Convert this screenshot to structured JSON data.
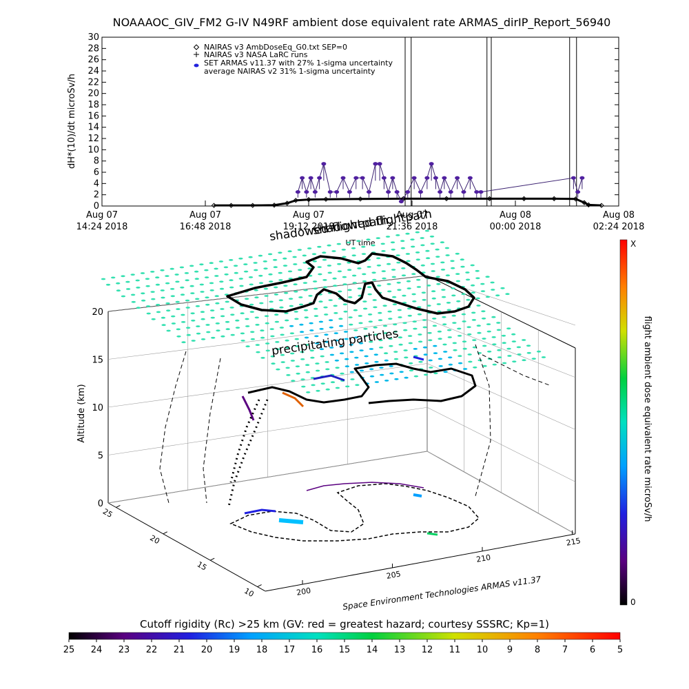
{
  "chart_data": [
    {
      "type": "scatter",
      "title": "NOAAAOC_GIV_FM2 G-IV    N49RF   ambient dose equivalent rate ARMAS_dirIP_Report_56940",
      "xlabel": "UT time",
      "ylabel": "dH*(10)/dt microSv/h",
      "ylim": [
        0,
        30
      ],
      "yticks": [
        0,
        2,
        4,
        6,
        8,
        10,
        12,
        14,
        16,
        18,
        20,
        22,
        24,
        26,
        28,
        30
      ],
      "xlim_hours": [
        0,
        12
      ],
      "xticks": [
        {
          "h": 0,
          "l1": "Aug 07",
          "l2": "14:24 2018"
        },
        {
          "h": 2.4,
          "l1": "Aug 07",
          "l2": "16:48 2018"
        },
        {
          "h": 4.8,
          "l1": "Aug 07",
          "l2": "19:12 2018"
        },
        {
          "h": 7.2,
          "l1": "Aug 07",
          "l2": "21:36 2018"
        },
        {
          "h": 9.6,
          "l1": "Aug 08",
          "l2": "00:00 2018"
        },
        {
          "h": 12,
          "l1": "Aug 08",
          "l2": "02:24 2018"
        }
      ],
      "legend": [
        {
          "marker": "diamond",
          "text": "NAIRAS v3 AmbDoseEq_G0.txt SEP=0"
        },
        {
          "marker": "plus",
          "text": "NAIRAS v3 NASA LaRC runs"
        },
        {
          "marker": "dot",
          "color": "#2222dd",
          "text": "SET ARMAS v11.37 with 27% 1-sigma uncertainty"
        },
        {
          "marker": "none",
          "text": "average NAIRAS v2 31% 1-sigma uncertainty"
        }
      ],
      "nairas_x": [
        2.6,
        3.0,
        3.5,
        4.0,
        4.3,
        4.5,
        4.8,
        5.2,
        6.0,
        7.0,
        8.0,
        9.0,
        9.8,
        10.5,
        11.0,
        11.2,
        11.3,
        11.6
      ],
      "nairas_y": [
        0.1,
        0.1,
        0.1,
        0.15,
        0.5,
        1.0,
        1.15,
        1.2,
        1.25,
        1.3,
        1.3,
        1.3,
        1.3,
        1.3,
        1.25,
        0.6,
        0.2,
        0.1
      ],
      "armas_x": [
        4.55,
        4.65,
        4.75,
        4.85,
        4.95,
        5.05,
        5.15,
        5.3,
        5.45,
        5.6,
        5.75,
        5.9,
        6.05,
        6.2,
        6.35,
        6.45,
        6.55,
        6.65,
        6.75,
        6.85,
        6.95,
        7.1,
        7.25,
        7.4,
        7.55,
        7.65,
        7.75,
        7.85,
        7.95,
        8.1,
        8.25,
        8.4,
        8.55,
        8.7,
        8.8,
        10.95,
        11.05,
        11.15
      ],
      "armas_y": [
        2.5,
        5.0,
        2.5,
        5.0,
        2.5,
        5.0,
        7.5,
        2.5,
        2.5,
        5.0,
        2.5,
        5.0,
        5.0,
        2.5,
        7.5,
        7.5,
        5.0,
        2.5,
        5.0,
        2.5,
        0.8,
        2.5,
        5.0,
        2.5,
        5.0,
        7.5,
        5.0,
        2.5,
        5.0,
        2.5,
        5.0,
        2.5,
        5.0,
        2.5,
        2.5,
        5.0,
        2.5,
        5.0
      ],
      "spikes_x": [
        7.04,
        7.18,
        8.94,
        9.04,
        10.86,
        11.02
      ]
    },
    {
      "type": "scatter",
      "title": "",
      "zlabel": "Altitude (km)",
      "zticks": [
        0,
        5,
        10,
        15,
        20
      ],
      "zlim": [
        0,
        20
      ],
      "lon_ticks": [
        200,
        205,
        210,
        215
      ],
      "lat_ticks": [
        10,
        15,
        20,
        25
      ],
      "annotations": [
        "shadowed flightpath",
        "precipitating particles"
      ],
      "credit": "Space Environment Technologies ARMAS v11.37",
      "colorbar_label": "flight ambient dose equivalent rate microSv/h",
      "colorbar_max_label": "X",
      "colorbar_min_label": "0"
    },
    {
      "type": "heatmap",
      "title": "Cutoff rigidity (Rc) >25 km (GV: red = greatest hazard; courtesy SSSRC; Kp=1)",
      "ticks": [
        25,
        24,
        23,
        22,
        21,
        20,
        19,
        18,
        17,
        16,
        15,
        14,
        13,
        12,
        11,
        10,
        9,
        8,
        7,
        6,
        5
      ]
    }
  ]
}
